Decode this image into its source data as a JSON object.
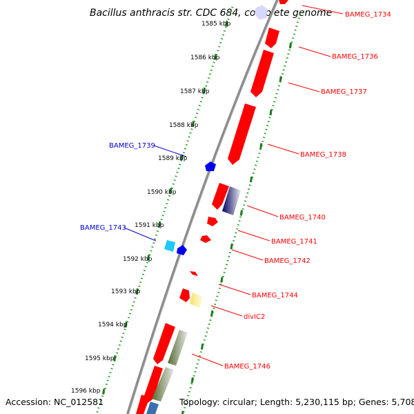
{
  "title": "Bacillus anthracis str. CDC 684, complete genome",
  "footer": {
    "accession": "Accession: NC_012581",
    "stats": "Topology: circular; Length: 5,230,115 bp; Genes: 5,708"
  },
  "ticks": [
    "1585 kbp",
    "1586 kbp",
    "1587 kbp",
    "1588 kbp",
    "1589 kbp",
    "1590 kbp",
    "1591 kbp",
    "1592 kbp",
    "1593 kbp",
    "1594 kbp",
    "1595 kbp",
    "1596 kbp"
  ],
  "gene_labels": [
    {
      "text": "BAMEG_1734",
      "color": "#ff0000"
    },
    {
      "text": "BAMEG_1736",
      "color": "#ff0000"
    },
    {
      "text": "BAMEG_1737",
      "color": "#ff0000"
    },
    {
      "text": "BAMEG_1738",
      "color": "#ff0000"
    },
    {
      "text": "BAMEG_1739",
      "color": "#0000cc"
    },
    {
      "text": "BAMEG_1740",
      "color": "#ff0000"
    },
    {
      "text": "BAMEG_1741",
      "color": "#ff0000"
    },
    {
      "text": "BAMEG_1742",
      "color": "#ff0000"
    },
    {
      "text": "BAMEG_1743",
      "color": "#0000cc"
    },
    {
      "text": "BAMEG_1744",
      "color": "#ff0000"
    },
    {
      "text": "divIC2",
      "color": "#ff0000"
    },
    {
      "text": "BAMEG_1746",
      "color": "#ff0000"
    }
  ],
  "colors": {
    "backbone": "#8c8c8c",
    "tick_major": "#1f7a1f",
    "tick_minor": "#2e9e2e",
    "forward_gene": "#ff0000",
    "reverse_gene": "#0000ee",
    "reverse_gene_light": "#1ec8ff",
    "forward_shade": "#f2f2f2"
  }
}
